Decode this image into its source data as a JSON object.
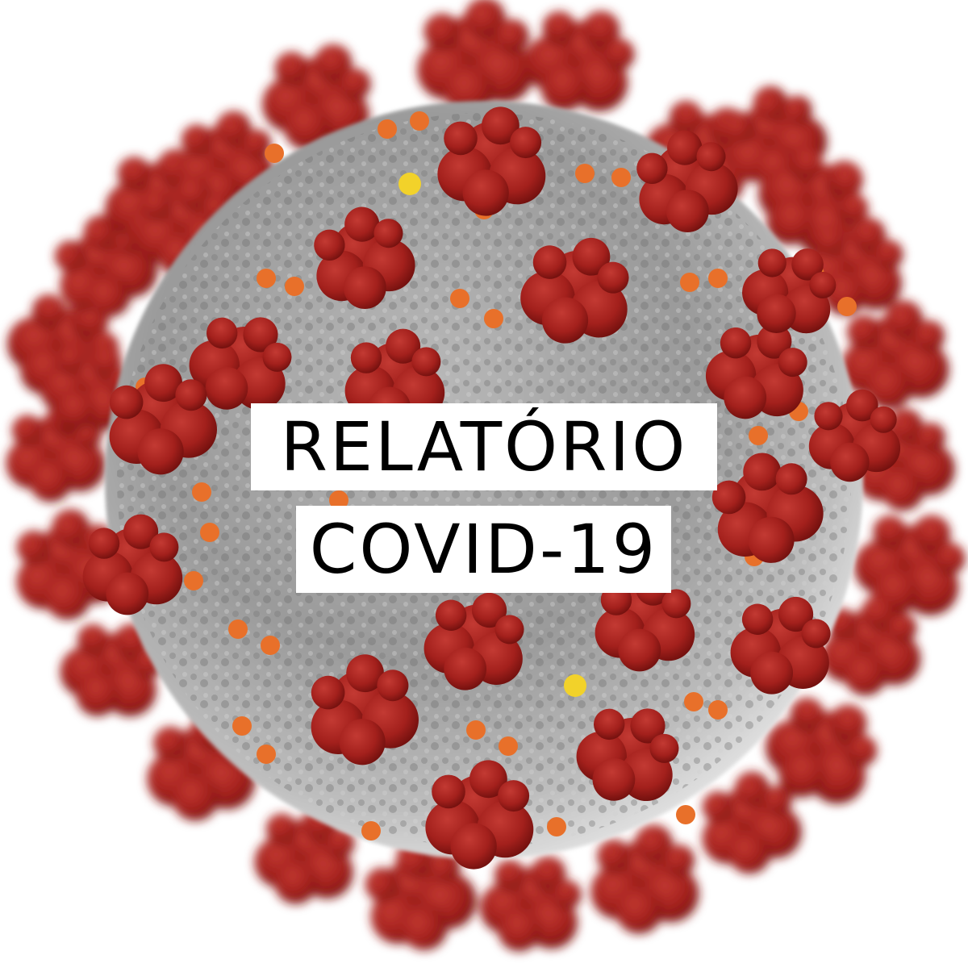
{
  "title": {
    "line1": "RELATÓRIO",
    "line2": "COVID-19"
  },
  "illustration": {
    "subject": "coronavirus particle",
    "colors": {
      "envelope": "#8f8f8f",
      "spike": "#a3201c",
      "e_protein": "#e8702a",
      "m_protein": "#f2d22a",
      "background": "#ffffff"
    }
  }
}
